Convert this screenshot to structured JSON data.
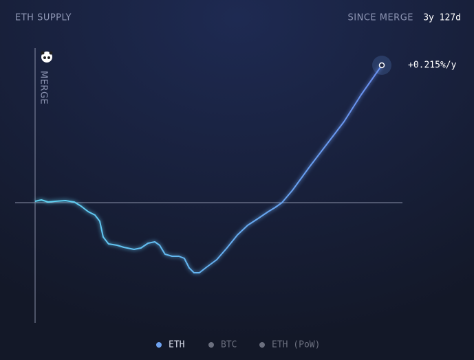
{
  "chart_data": {
    "type": "line",
    "title": "ETH SUPPLY",
    "since_label": "SINCE MERGE",
    "since_value": "3y 127d",
    "annotation": "MERGE",
    "end_label": "+0.215%/y",
    "xlim": [
      0,
      1222
    ],
    "ylim": [
      -87.5,
      112.5
    ],
    "x": [
      0,
      22,
      46,
      70,
      107,
      138,
      162,
      187,
      211,
      228,
      240,
      259,
      289,
      313,
      349,
      373,
      398,
      422,
      439,
      458,
      483,
      507,
      526,
      543,
      560,
      579,
      604,
      640,
      676,
      713,
      749,
      786,
      822,
      846,
      870,
      907,
      967,
      1028,
      1089,
      1149,
      1222
    ],
    "series": [
      {
        "name": "ETH",
        "color": "#6ea2f0",
        "values": [
          1,
          2,
          0.5,
          1,
          1.5,
          0.5,
          -2.5,
          -6.5,
          -9,
          -13.5,
          -25,
          -30,
          -31,
          -32.5,
          -34,
          -33,
          -29.5,
          -28.5,
          -31,
          -37.5,
          -39,
          -39,
          -40.5,
          -47.5,
          -51,
          -51,
          -47,
          -41.5,
          -33,
          -23.5,
          -16.5,
          -11.5,
          -6.5,
          -3.5,
          0,
          9,
          26,
          42.5,
          59,
          78.5,
          100
        ]
      }
    ],
    "legend_extra": [
      {
        "name": "BTC",
        "color": "#6b6f7e"
      },
      {
        "name": "ETH (PoW)",
        "color": "#6b6f7e"
      }
    ]
  }
}
